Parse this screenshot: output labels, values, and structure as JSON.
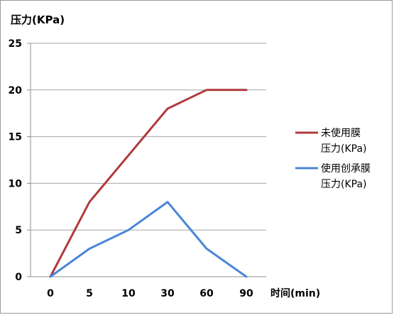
{
  "chart_data": {
    "type": "line",
    "ylabel": "压力(KPa)",
    "xlabel": "时间(min)",
    "categories": [
      "0",
      "5",
      "10",
      "30",
      "60",
      "90"
    ],
    "ylim": [
      0,
      25
    ],
    "yticks": [
      0,
      5,
      10,
      15,
      20,
      25
    ],
    "grid": true,
    "legend_position": "right",
    "series": [
      {
        "name": "未使用膜压力(KPa)",
        "legend_lines": [
          "未使用膜",
          "压力(KPa)"
        ],
        "color": "#b03a3e",
        "values": [
          0,
          8,
          13,
          18,
          20,
          20
        ]
      },
      {
        "name": "使用创承膜压力(KPa)",
        "legend_lines": [
          "使用创承膜",
          "压力(KPa)"
        ],
        "color": "#4a86d8",
        "values": [
          0,
          3,
          5,
          8,
          3,
          0
        ]
      }
    ]
  }
}
